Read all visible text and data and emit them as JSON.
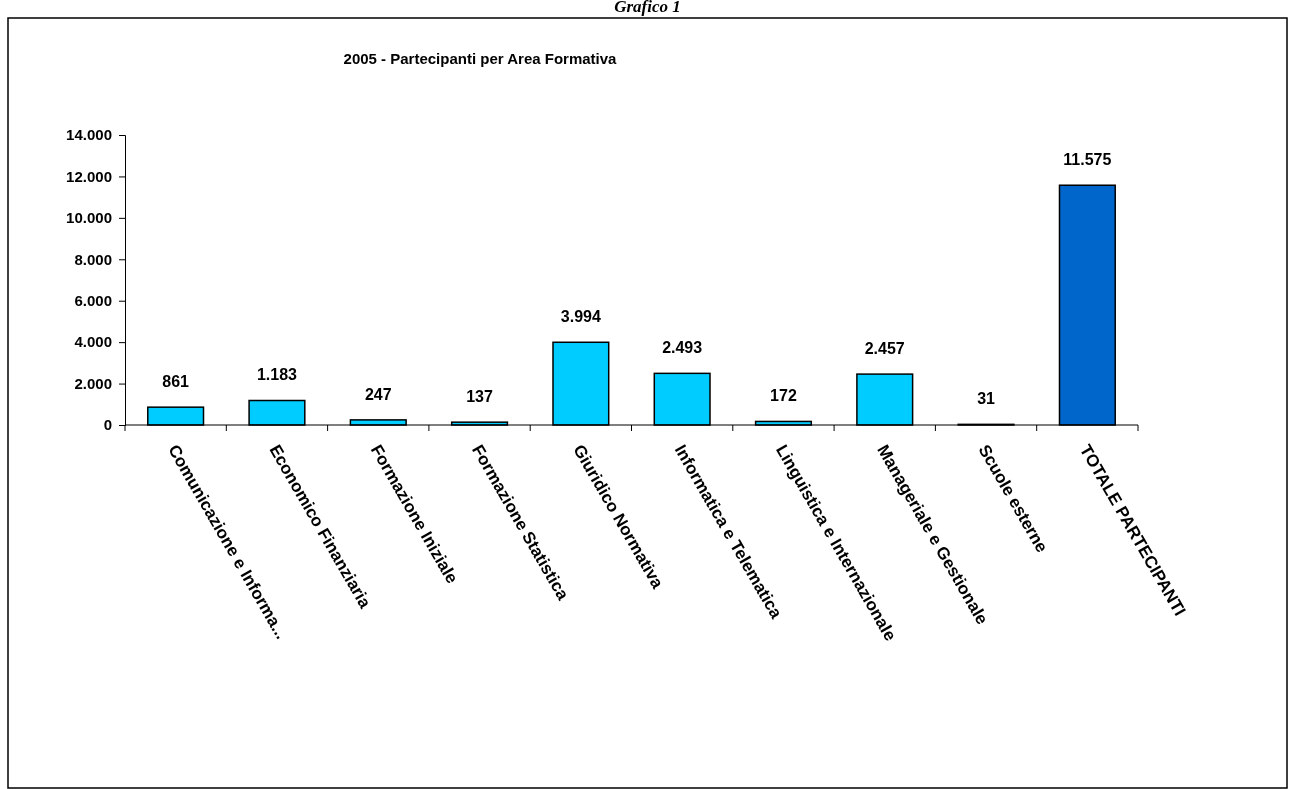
{
  "chart_data": {
    "type": "bar",
    "title": "2005 - Partecipanti per Area Formativa",
    "annotations": [
      "Grafico 1"
    ],
    "categories": [
      "Comunicazione e Informa...",
      "Economico Finanziaria",
      "Formazione Iniziale",
      "Formazione Statistica",
      "Giuridico  Normativa",
      "Informatica e Telematica",
      "Linguistica e Internazionale",
      "Manageriale e Gestionale",
      "Scuole esterne",
      "TOTALE PARTECIPANTI"
    ],
    "values": [
      861,
      1183,
      247,
      137,
      3994,
      2493,
      172,
      2457,
      31,
      11575
    ],
    "colors": [
      "#00ccff",
      "#00ccff",
      "#00ccff",
      "#00ccff",
      "#00ccff",
      "#00ccff",
      "#00ccff",
      "#00ccff",
      "#00ccff",
      "#0066cc"
    ],
    "value_labels": [
      "861",
      "1.183",
      "247",
      "137",
      "3.994",
      "2.493",
      "172",
      "2.457",
      "31",
      "11.575"
    ],
    "ylim": [
      0,
      14000
    ],
    "yticks": [
      {
        "value": 0,
        "label": "0"
      },
      {
        "value": 2000,
        "label": "2.000"
      },
      {
        "value": 4000,
        "label": "4.000"
      },
      {
        "value": 6000,
        "label": "6.000"
      },
      {
        "value": 8000,
        "label": "8.000"
      },
      {
        "value": 10000,
        "label": "10.000"
      },
      {
        "value": 12000,
        "label": "12.000"
      },
      {
        "value": 14000,
        "label": "14.000"
      }
    ],
    "grid": false
  }
}
